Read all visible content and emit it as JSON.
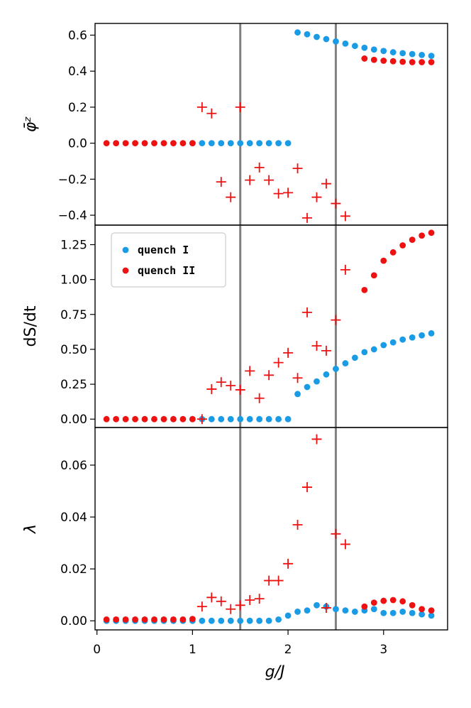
{
  "chart_data": {
    "type": "scatter",
    "x_axis": {
      "label": "g/J",
      "range": [
        -0.02,
        3.67
      ],
      "ticks": [
        0,
        1,
        2,
        3
      ],
      "tick_labels": [
        "0",
        "1",
        "2",
        "3"
      ]
    },
    "vlines": [
      1.5,
      2.5
    ],
    "legend": {
      "placement": "upper-left (middle panel)",
      "entries": [
        {
          "name": "quench I",
          "color": "#1a9be6"
        },
        {
          "name": "quench II",
          "color": "#ee1111"
        }
      ]
    },
    "panels": [
      {
        "id": "phi",
        "ylabel": "φ̄ᶻ",
        "ylim": [
          -0.455,
          0.665
        ],
        "yticks": [
          0.6,
          0.4,
          0.2,
          0.0,
          -0.2,
          -0.4
        ],
        "ytick_labels": [
          "0.6",
          "0.4",
          "0.2",
          "0.0",
          "−0.2",
          "−0.4"
        ],
        "series": [
          {
            "legend_ref": "quench I",
            "marker": "dot",
            "color": "#1a9be6",
            "x": [
              1.0,
              1.1,
              1.2,
              1.3,
              1.4,
              1.5,
              1.6,
              1.7,
              1.8,
              1.9,
              2.0,
              2.1,
              2.2,
              2.3,
              2.4,
              2.5,
              2.6,
              2.7,
              2.8,
              2.9,
              3.0,
              3.1,
              3.2,
              3.3,
              3.4,
              3.5
            ],
            "y": [
              0,
              0,
              0,
              0,
              0,
              0,
              0,
              0,
              0,
              0,
              0,
              0.615,
              0.605,
              0.59,
              0.578,
              0.565,
              0.553,
              0.54,
              0.53,
              0.52,
              0.512,
              0.505,
              0.5,
              0.495,
              0.49,
              0.485
            ]
          },
          {
            "legend_ref": "quench II",
            "marker": "dot",
            "color": "#ee1111",
            "x": [
              0.1,
              0.2,
              0.3,
              0.4,
              0.5,
              0.6,
              0.7,
              0.8,
              0.9,
              1.0,
              2.8,
              2.9,
              3.0,
              3.1,
              3.2,
              3.3,
              3.4,
              3.5
            ],
            "y": [
              0,
              0,
              0,
              0,
              0,
              0,
              0,
              0,
              0,
              0,
              0.47,
              0.463,
              0.458,
              0.455,
              0.452,
              0.45,
              0.45,
              0.45
            ]
          },
          {
            "legend_ref": "quench II",
            "marker": "plus",
            "color": "#ee1111",
            "x": [
              1.1,
              1.2,
              1.3,
              1.4,
              1.5,
              1.6,
              1.7,
              1.8,
              1.9,
              2.0,
              2.1,
              2.2,
              2.3,
              2.4,
              2.5,
              2.6
            ],
            "y": [
              0.2,
              0.165,
              -0.215,
              -0.3,
              0.2,
              -0.205,
              -0.135,
              -0.205,
              -0.28,
              -0.275,
              -0.14,
              -0.415,
              -0.3,
              -0.225,
              -0.335,
              -0.405
            ]
          }
        ]
      },
      {
        "id": "dsdt",
        "ylabel": "dS/dt",
        "ylim": [
          -0.06,
          1.39
        ],
        "yticks": [
          1.25,
          1.0,
          0.75,
          0.5,
          0.25,
          0.0
        ],
        "ytick_labels": [
          "1.25",
          "1.00",
          "0.75",
          "0.50",
          "0.25",
          "0.00"
        ],
        "series": [
          {
            "legend_ref": "quench I",
            "marker": "dot",
            "color": "#1a9be6",
            "x": [
              1.0,
              1.1,
              1.2,
              1.3,
              1.4,
              1.5,
              1.6,
              1.7,
              1.8,
              1.9,
              2.0,
              2.1,
              2.2,
              2.3,
              2.4,
              2.5,
              2.6,
              2.7,
              2.8,
              2.9,
              3.0,
              3.1,
              3.2,
              3.3,
              3.4,
              3.5
            ],
            "y": [
              0,
              0,
              0,
              0,
              0,
              0,
              0,
              0,
              0,
              0,
              0,
              0.18,
              0.23,
              0.27,
              0.32,
              0.36,
              0.4,
              0.44,
              0.48,
              0.5,
              0.53,
              0.55,
              0.57,
              0.585,
              0.6,
              0.615
            ]
          },
          {
            "legend_ref": "quench II",
            "marker": "dot",
            "color": "#ee1111",
            "x": [
              0.1,
              0.2,
              0.3,
              0.4,
              0.5,
              0.6,
              0.7,
              0.8,
              0.9,
              1.0,
              2.8,
              2.9,
              3.0,
              3.1,
              3.2,
              3.3,
              3.4,
              3.5
            ],
            "y": [
              0,
              0,
              0,
              0,
              0,
              0,
              0,
              0,
              0,
              0,
              0.925,
              1.03,
              1.135,
              1.195,
              1.245,
              1.285,
              1.315,
              1.335
            ]
          },
          {
            "legend_ref": "quench II",
            "marker": "plus",
            "color": "#ee1111",
            "x": [
              1.1,
              1.2,
              1.3,
              1.4,
              1.5,
              1.6,
              1.7,
              1.8,
              1.9,
              2.0,
              2.1,
              2.2,
              2.3,
              2.4,
              2.5,
              2.6
            ],
            "y": [
              0.0,
              0.215,
              0.265,
              0.24,
              0.21,
              0.345,
              0.15,
              0.315,
              0.405,
              0.475,
              0.295,
              0.765,
              0.525,
              0.49,
              0.71,
              1.07
            ]
          }
        ]
      },
      {
        "id": "lambda",
        "ylabel": "λ",
        "ylim": [
          -0.0035,
          0.0745
        ],
        "yticks": [
          0.06,
          0.04,
          0.02,
          0.0
        ],
        "ytick_labels": [
          "0.06",
          "0.04",
          "0.02",
          "0.00"
        ],
        "series": [
          {
            "legend_ref": "quench I",
            "marker": "dot",
            "color": "#1a9be6",
            "x": [
              0.1,
              0.2,
              0.3,
              0.4,
              0.5,
              0.6,
              0.7,
              0.8,
              0.9,
              1.0,
              1.1,
              1.2,
              1.3,
              1.4,
              1.5,
              1.6,
              1.7,
              1.8,
              1.9,
              2.0,
              2.1,
              2.2,
              2.3,
              2.4,
              2.5,
              2.6,
              2.7,
              2.8,
              2.9,
              3.0,
              3.1,
              3.2,
              3.3,
              3.4,
              3.5
            ],
            "y": [
              0,
              0,
              0,
              0,
              0,
              0,
              0,
              0,
              0,
              0,
              0,
              0,
              0,
              0,
              0,
              0,
              0,
              0,
              0.0005,
              0.002,
              0.0035,
              0.004,
              0.006,
              0.0055,
              0.0045,
              0.004,
              0.0035,
              0.004,
              0.0045,
              0.003,
              0.003,
              0.0035,
              0.003,
              0.0025,
              0.002
            ]
          },
          {
            "legend_ref": "quench II",
            "marker": "dot",
            "color": "#ee1111",
            "x": [
              0.1,
              0.2,
              0.3,
              0.4,
              0.5,
              0.6,
              0.7,
              0.8,
              0.9,
              1.0,
              2.8,
              2.9,
              3.0,
              3.1,
              3.2,
              3.3,
              3.4,
              3.5
            ],
            "y": [
              0.0005,
              0.0005,
              0.0005,
              0.0005,
              0.0005,
              0.0005,
              0.0005,
              0.0005,
              0.0005,
              0.0007,
              0.0055,
              0.007,
              0.0077,
              0.008,
              0.0075,
              0.006,
              0.0045,
              0.004
            ]
          },
          {
            "legend_ref": "quench II",
            "marker": "plus",
            "color": "#ee1111",
            "x": [
              1.1,
              1.2,
              1.3,
              1.4,
              1.5,
              1.6,
              1.7,
              1.8,
              1.9,
              2.0,
              2.1,
              2.2,
              2.3,
              2.4,
              2.5,
              2.6
            ],
            "y": [
              0.0055,
              0.009,
              0.0075,
              0.0045,
              0.006,
              0.008,
              0.0085,
              0.0155,
              0.0155,
              0.022,
              0.037,
              0.0515,
              0.07,
              0.005,
              0.0335,
              0.0295
            ]
          }
        ]
      }
    ]
  }
}
